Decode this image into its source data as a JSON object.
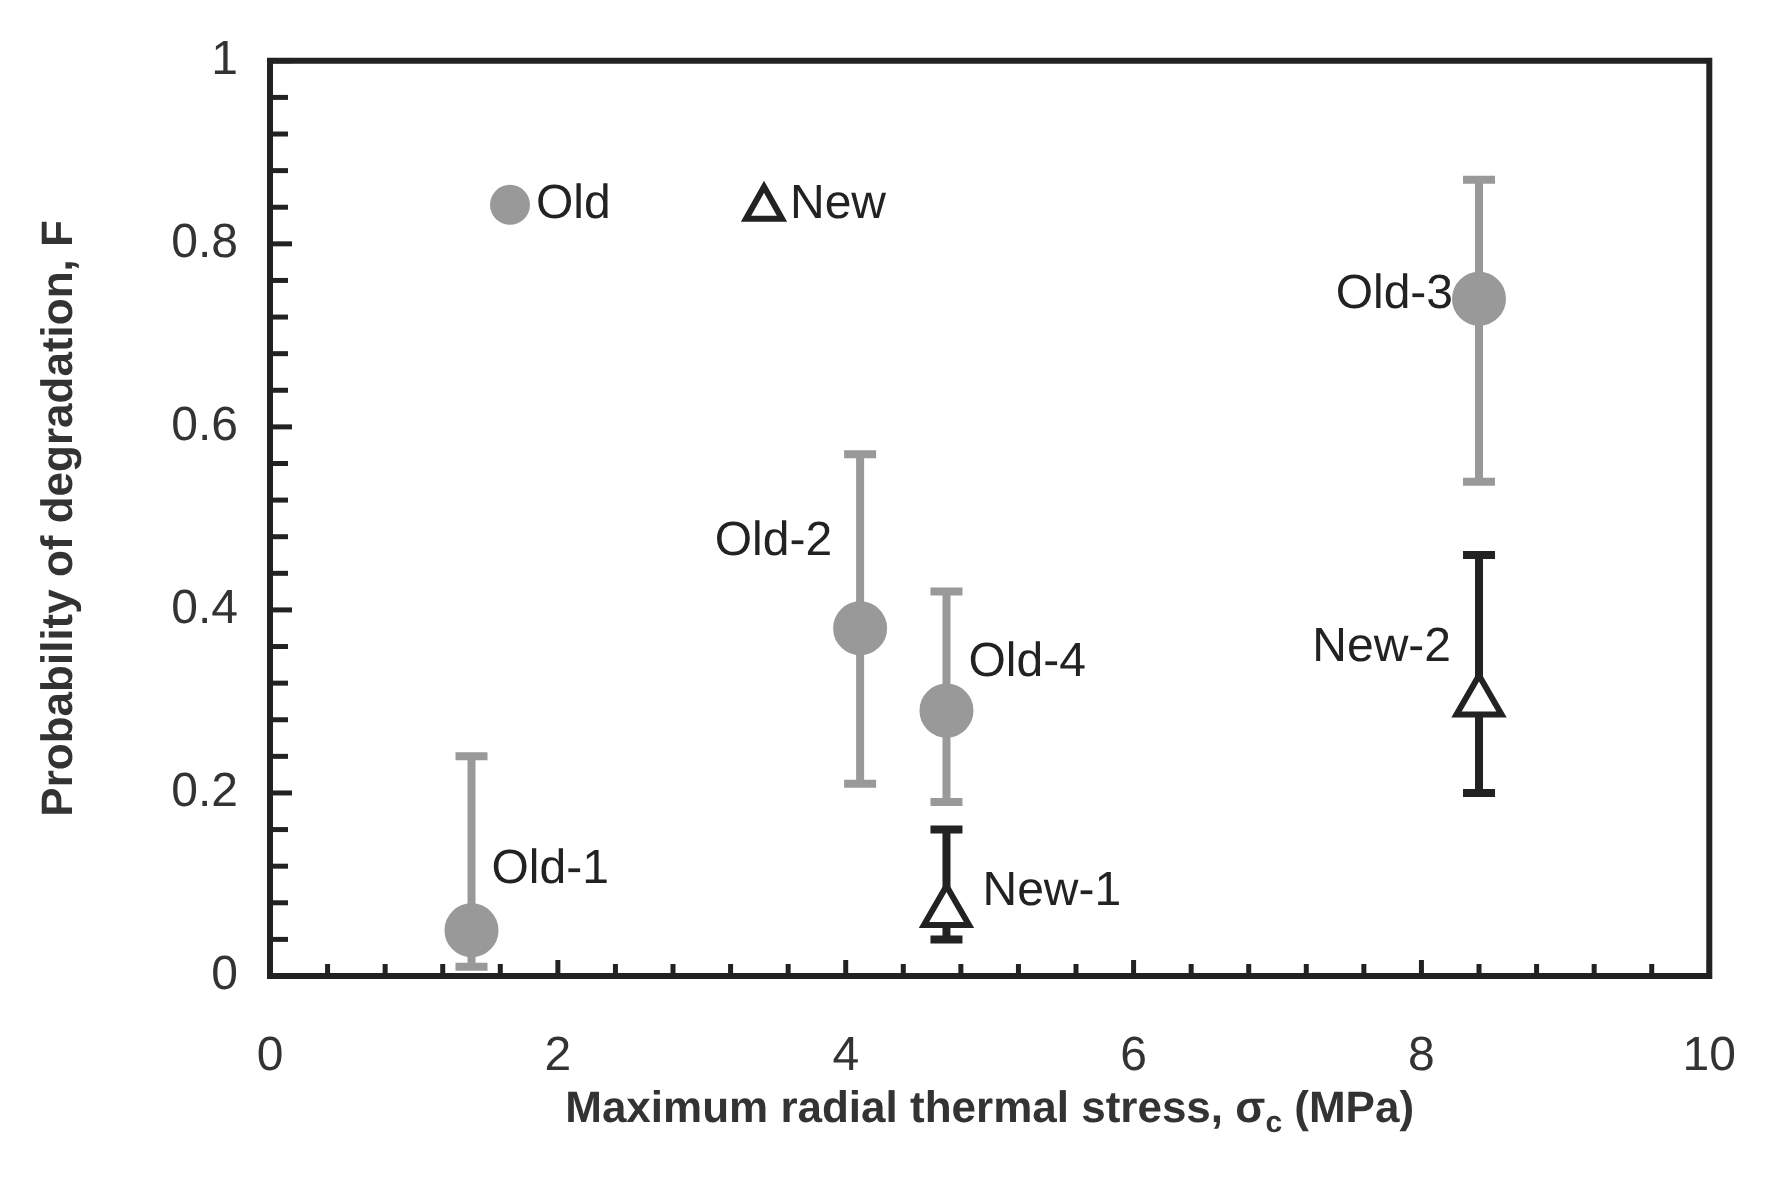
{
  "chart_data": {
    "type": "scatter",
    "xlabel": "Maximum radial thermal stress, σ$_{c}$ (MPa)",
    "ylabel": "Probability of degradation, F",
    "xlim": [
      0,
      10
    ],
    "xticks": [
      0,
      {
        "value": 0.4,
        "label": null
      },
      {
        "value": 0.8,
        "label": null
      },
      {
        "value": 1.2,
        "label": null
      },
      {
        "value": 1.6,
        "label": null
      },
      2,
      {
        "value": 2.4,
        "label": null
      },
      {
        "value": 2.8,
        "label": null
      },
      {
        "value": 3.2,
        "label": null
      },
      {
        "value": 3.6,
        "label": null
      },
      4,
      {
        "value": 4.4,
        "label": null
      },
      {
        "value": 4.8,
        "label": null
      },
      {
        "value": 5.2,
        "label": null
      },
      {
        "value": 5.6,
        "label": null
      },
      6,
      {
        "value": 6.4,
        "label": null
      },
      {
        "value": 6.8,
        "label": null
      },
      {
        "value": 7.2,
        "label": null
      },
      {
        "value": 7.6,
        "label": null
      },
      8,
      {
        "value": 8.4,
        "label": null
      },
      {
        "value": 8.8,
        "label": null
      },
      {
        "value": 9.2,
        "label": null
      },
      {
        "value": 9.6,
        "label": null
      },
      10
    ],
    "ylim": [
      0,
      1
    ],
    "yticks": [
      0,
      {
        "value": 0.04,
        "label": null
      },
      {
        "value": 0.08,
        "label": null
      },
      {
        "value": 0.12,
        "label": null
      },
      {
        "value": 0.16,
        "label": null
      },
      0.2,
      {
        "value": 0.24,
        "label": null
      },
      {
        "value": 0.28,
        "label": null
      },
      {
        "value": 0.32,
        "label": null
      },
      {
        "value": 0.36,
        "label": null
      },
      0.4,
      {
        "value": 0.44,
        "label": null
      },
      {
        "value": 0.48,
        "label": null
      },
      {
        "value": 0.52,
        "label": null
      },
      {
        "value": 0.56,
        "label": null
      },
      0.6,
      {
        "value": 0.64,
        "label": null
      },
      {
        "value": 0.68,
        "label": null
      },
      {
        "value": 0.72,
        "label": null
      },
      {
        "value": 0.76,
        "label": null
      },
      0.8,
      {
        "value": 0.84,
        "label": null
      },
      {
        "value": 0.88,
        "label": null
      },
      {
        "value": 0.92,
        "label": null
      },
      {
        "value": 0.96,
        "label": null
      },
      1
    ],
    "grid": false,
    "legend": "top left",
    "series": [
      {
        "name": "Old",
        "color": "#999999",
        "marker": "circle",
        "x": [
          1.4,
          4.1,
          8.4,
          4.7
        ],
        "values": [
          0.05,
          0.38,
          0.74,
          0.29
        ],
        "errors": [
          [
            0.01,
            0.24
          ],
          [
            0.21,
            0.57
          ],
          [
            0.54,
            0.87
          ],
          [
            0.19,
            0.42
          ]
        ]
      },
      {
        "name": "New",
        "color": "#222222",
        "marker": "triangle",
        "x": [
          4.7,
          8.4
        ],
        "values": [
          0.07,
          0.3
        ],
        "errors": [
          [
            0.04,
            0.16
          ],
          [
            0.2,
            0.46
          ]
        ]
      }
    ],
    "annotations": [
      {
        "text": "Old-1",
        "x": 1.4,
        "y": 0.05
      },
      {
        "text": "Old-2",
        "x": 4.1,
        "y": 0.38
      },
      {
        "text": "Old-3",
        "x": 8.4,
        "y": 0.74
      },
      {
        "text": "Old-4",
        "x": 4.7,
        "y": 0.29
      },
      {
        "text": "New-1",
        "x": 4.7,
        "y": 0.07
      },
      {
        "text": "New-2",
        "x": 8.4,
        "y": 0.3
      }
    ]
  }
}
